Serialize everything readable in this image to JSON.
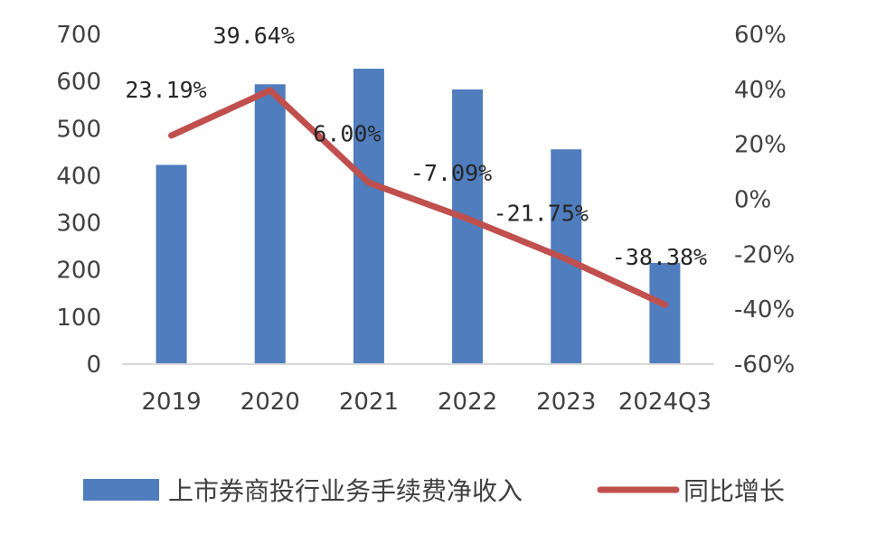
{
  "chart_data": {
    "type": "bar",
    "categories": [
      "2019",
      "2020",
      "2021",
      "2022",
      "2023",
      "2024Q3"
    ],
    "series": [
      {
        "name": "上市券商投行业务手续费净收入",
        "kind": "bar",
        "axis": "left",
        "color": "#4f7dbd",
        "values": [
          423,
          594,
          627,
          583,
          456,
          215
        ]
      },
      {
        "name": "同比增长",
        "kind": "line",
        "axis": "right",
        "color": "#c0504d",
        "values": [
          23.19,
          39.64,
          6.0,
          -7.09,
          -21.75,
          -38.38
        ],
        "labels": [
          "23.19%",
          "39.64%",
          "6.00%",
          "-7.09%",
          "-21.75%",
          "-38.38%"
        ]
      }
    ],
    "y_left": {
      "min": 0,
      "max": 700,
      "ticks": [
        "0",
        "100",
        "200",
        "300",
        "400",
        "500",
        "600",
        "700"
      ]
    },
    "y_right": {
      "min": -60,
      "max": 60,
      "ticks": [
        "-60%",
        "-40%",
        "-20%",
        "0%",
        "20%",
        "40%",
        "60%"
      ]
    },
    "legend_position": "bottom",
    "grid": false
  }
}
